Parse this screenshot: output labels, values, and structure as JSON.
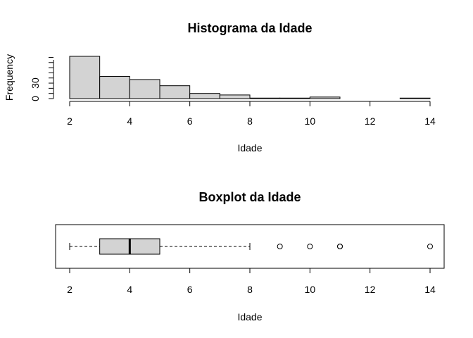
{
  "chart_data": [
    {
      "type": "histogram",
      "title": "Histograma da Idade",
      "xlabel": "Idade",
      "ylabel": "Frequency",
      "xlim": [
        2,
        14
      ],
      "x_ticks": [
        "2",
        "4",
        "6",
        "8",
        "10",
        "12",
        "14"
      ],
      "y_ticks": [
        "0",
        "30"
      ],
      "bins": [
        {
          "from": 2,
          "to": 3,
          "count": 82
        },
        {
          "from": 3,
          "to": 4,
          "count": 43
        },
        {
          "from": 4,
          "to": 5,
          "count": 37
        },
        {
          "from": 5,
          "to": 6,
          "count": 25
        },
        {
          "from": 6,
          "to": 7,
          "count": 10
        },
        {
          "from": 7,
          "to": 8,
          "count": 7
        },
        {
          "from": 8,
          "to": 9,
          "count": 1
        },
        {
          "from": 9,
          "to": 10,
          "count": 1
        },
        {
          "from": 10,
          "to": 11,
          "count": 3
        },
        {
          "from": 11,
          "to": 12,
          "count": 0
        },
        {
          "from": 12,
          "to": 13,
          "count": 0
        },
        {
          "from": 13,
          "to": 14,
          "count": 1
        }
      ],
      "ylim": [
        0,
        82
      ],
      "grid": false
    },
    {
      "type": "boxplot",
      "title": "Boxplot da Idade",
      "xlabel": "Idade",
      "orientation": "horizontal",
      "xlim": [
        2,
        14
      ],
      "x_ticks": [
        "2",
        "4",
        "6",
        "8",
        "10",
        "12",
        "14"
      ],
      "whisker_low": 2,
      "q1": 3,
      "median": 4,
      "q3": 5,
      "whisker_high": 8,
      "outliers": [
        9,
        10,
        11,
        11,
        14
      ],
      "grid": false
    }
  ]
}
